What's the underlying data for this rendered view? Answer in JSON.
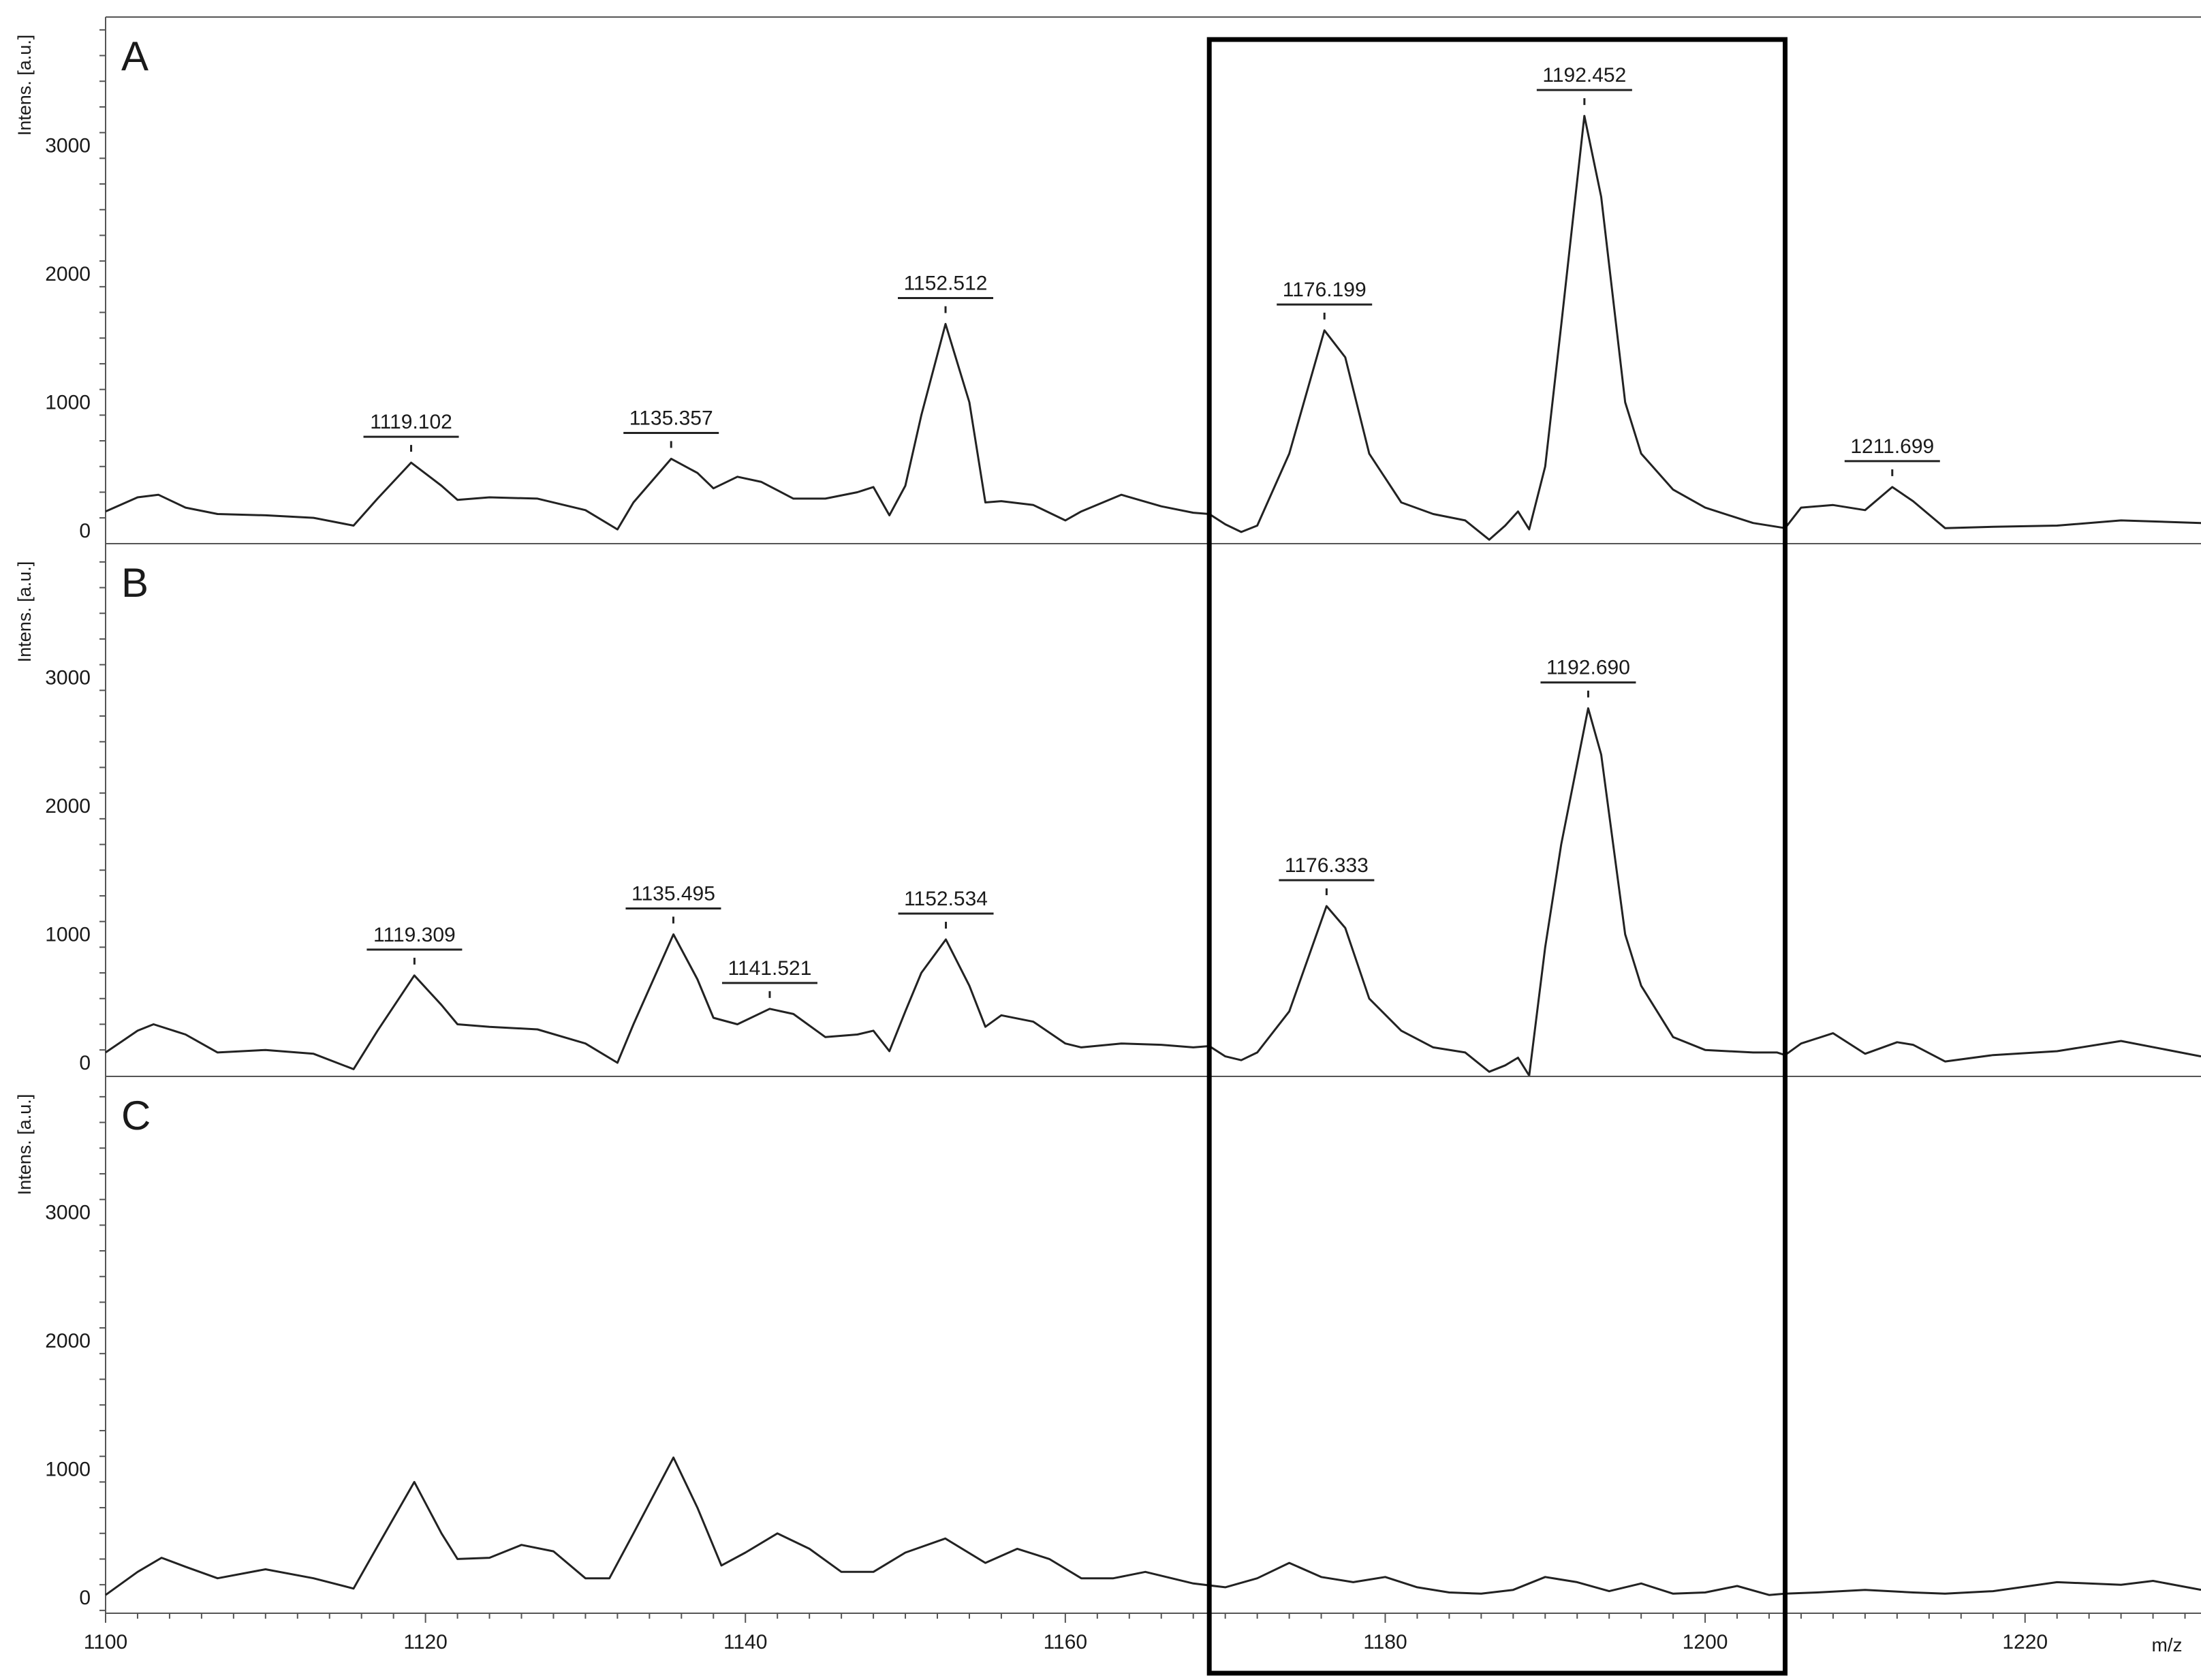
{
  "chart_data": {
    "type": "line",
    "xlabel": "m/z",
    "ylabel": "Intens. [a.u.]",
    "xlim": [
      1100,
      1231
    ],
    "x_ticks": [
      1100,
      1120,
      1140,
      1160,
      1180,
      1200,
      1220
    ],
    "ylim": [
      -100,
      4000
    ],
    "y_ticks": [
      0,
      1000,
      2000,
      3000
    ],
    "grid": false,
    "highlight_box": {
      "x_range": [
        1169,
        1205
      ],
      "style": "thick black rectangle spanning all panels"
    },
    "panels": [
      {
        "label": "A",
        "series": {
          "x": [
            1100,
            1102,
            1103.3,
            1105,
            1107,
            1110,
            1113,
            1115.5,
            1117,
            1119.1,
            1121,
            1122,
            1124,
            1127,
            1130,
            1132,
            1133,
            1135.36,
            1137,
            1138,
            1139.5,
            1141,
            1143,
            1145,
            1147,
            1148,
            1149,
            1150,
            1151,
            1152.51,
            1154,
            1155,
            1156,
            1158,
            1160,
            1161,
            1163.5,
            1166,
            1168,
            1169,
            1170,
            1171,
            1172,
            1174,
            1176.2,
            1177.5,
            1179,
            1181,
            1183,
            1185,
            1186.5,
            1187.5,
            1188.3,
            1189,
            1190,
            1191,
            1192.45,
            1193.5,
            1195,
            1196,
            1198,
            1200,
            1203,
            1204.5,
            1205,
            1206,
            1208,
            1210,
            1211.7,
            1213,
            1215,
            1218,
            1222,
            1226,
            1231
          ],
          "y": [
            150,
            260,
            280,
            180,
            130,
            120,
            100,
            40,
            250,
            530,
            350,
            240,
            260,
            250,
            160,
            10,
            220,
            560,
            450,
            330,
            420,
            380,
            250,
            250,
            300,
            340,
            120,
            350,
            900,
            1610,
            1000,
            220,
            230,
            200,
            80,
            150,
            280,
            190,
            140,
            130,
            50,
            -10,
            40,
            600,
            1560,
            1350,
            600,
            220,
            130,
            80,
            -70,
            40,
            150,
            10,
            500,
            1600,
            3230,
            2600,
            1000,
            600,
            320,
            180,
            60,
            30,
            20,
            180,
            200,
            160,
            340,
            230,
            20,
            30,
            40,
            80,
            60
          ]
        },
        "peak_labels": [
          {
            "x": 1119.102,
            "y": 530,
            "text": "1119.102"
          },
          {
            "x": 1135.357,
            "y": 560,
            "text": "1135.357"
          },
          {
            "x": 1152.512,
            "y": 1610,
            "text": "1152.512"
          },
          {
            "x": 1176.199,
            "y": 1560,
            "text": "1176.199"
          },
          {
            "x": 1192.452,
            "y": 3230,
            "text": "1192.452"
          },
          {
            "x": 1211.699,
            "y": 340,
            "text": "1211.699"
          }
        ]
      },
      {
        "label": "B",
        "series": {
          "x": [
            1100,
            1102,
            1103,
            1105,
            1107,
            1110,
            1113,
            1115.5,
            1117,
            1119.3,
            1121,
            1122,
            1124,
            1127,
            1130,
            1132,
            1133,
            1135.5,
            1137,
            1138,
            1139.5,
            1141.52,
            1143,
            1145,
            1147,
            1148,
            1149,
            1150,
            1151,
            1152.53,
            1154,
            1155,
            1156,
            1158,
            1160,
            1161,
            1163.5,
            1166,
            1168,
            1169,
            1170,
            1171,
            1172,
            1174,
            1176.33,
            1177.5,
            1179,
            1181,
            1183,
            1185,
            1186.5,
            1187.5,
            1188.3,
            1189,
            1190,
            1191,
            1192.69,
            1193.5,
            1195,
            1196,
            1198,
            1200,
            1203,
            1204.5,
            1205,
            1206,
            1208,
            1210,
            1212,
            1213,
            1215,
            1218,
            1222,
            1226,
            1231
          ],
          "y": [
            80,
            250,
            300,
            220,
            80,
            100,
            70,
            -50,
            250,
            680,
            450,
            300,
            280,
            260,
            150,
            0,
            300,
            1000,
            650,
            350,
            300,
            420,
            380,
            200,
            220,
            250,
            90,
            400,
            700,
            960,
            600,
            280,
            370,
            320,
            150,
            120,
            150,
            140,
            120,
            130,
            50,
            20,
            80,
            400,
            1220,
            1050,
            500,
            250,
            120,
            80,
            -70,
            -20,
            40,
            -100,
            900,
            1700,
            2760,
            2400,
            1000,
            600,
            200,
            100,
            80,
            80,
            60,
            150,
            230,
            70,
            160,
            140,
            10,
            60,
            90,
            170,
            50
          ]
        },
        "peak_labels": [
          {
            "x": 1119.309,
            "y": 680,
            "text": "1119.309"
          },
          {
            "x": 1135.495,
            "y": 1000,
            "text": "1135.495"
          },
          {
            "x": 1141.521,
            "y": 420,
            "text": "1141.521"
          },
          {
            "x": 1152.534,
            "y": 960,
            "text": "1152.534"
          },
          {
            "x": 1176.333,
            "y": 1220,
            "text": "1176.333"
          },
          {
            "x": 1192.69,
            "y": 2760,
            "text": "1192.690"
          }
        ]
      },
      {
        "label": "C",
        "series": {
          "x": [
            1100,
            1102,
            1103.5,
            1105,
            1107,
            1110,
            1113,
            1115.5,
            1117,
            1119.3,
            1121,
            1122,
            1124,
            1126,
            1128,
            1130,
            1131.5,
            1133,
            1135.5,
            1137,
            1138.5,
            1140,
            1142,
            1144,
            1146,
            1148,
            1150,
            1152.5,
            1155,
            1157,
            1159,
            1161,
            1163,
            1165,
            1168,
            1170,
            1172,
            1174,
            1176,
            1178,
            1180,
            1182,
            1184,
            1186,
            1188,
            1190,
            1192,
            1194,
            1196,
            1198,
            1200,
            1202,
            1204,
            1205,
            1207,
            1210,
            1213,
            1215,
            1218,
            1222,
            1226,
            1228,
            1231
          ],
          "y": [
            20,
            200,
            310,
            240,
            150,
            220,
            150,
            70,
            400,
            900,
            500,
            300,
            310,
            410,
            360,
            150,
            150,
            500,
            1090,
            700,
            250,
            350,
            500,
            380,
            200,
            200,
            350,
            460,
            270,
            380,
            300,
            150,
            150,
            200,
            110,
            80,
            150,
            270,
            160,
            120,
            160,
            80,
            40,
            30,
            60,
            160,
            120,
            50,
            110,
            30,
            40,
            90,
            20,
            30,
            40,
            60,
            40,
            30,
            50,
            120,
            100,
            130,
            60
          ]
        }
      }
    ]
  }
}
